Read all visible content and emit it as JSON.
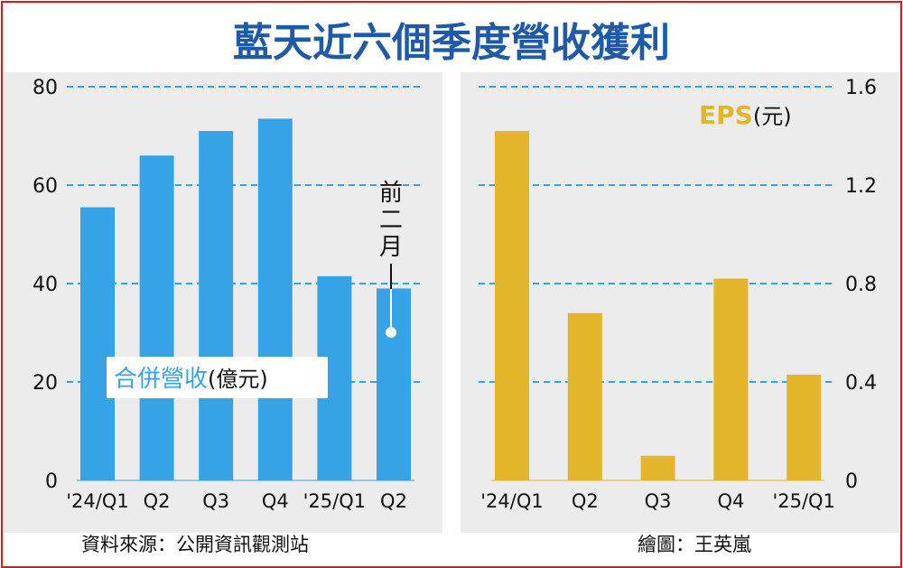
{
  "title": "藍天近六個季度營收獲利",
  "source": "資料來源：公開資訊觀測站",
  "credit": "繪圖：王英嵐",
  "colors": {
    "revenue": "#36a3e6",
    "eps": "#e2b52a",
    "title": "#1e5aa6",
    "grid": "#36a3e6",
    "border": "#e0141e"
  },
  "chart_data": [
    {
      "type": "bar",
      "legend_main": "合併營收",
      "legend_unit": "(億元)",
      "categories": [
        "'24/Q1",
        "Q2",
        "Q3",
        "Q4",
        "'25/Q1",
        "Q2"
      ],
      "values": [
        55.5,
        66,
        71,
        73.5,
        41.5,
        39
      ],
      "ylim": [
        0,
        80
      ],
      "yticks": [
        "0",
        "20",
        "40",
        "60",
        "80"
      ],
      "annotation": "前二月",
      "annotation_index": 5
    },
    {
      "type": "bar",
      "legend_main": "EPS",
      "legend_unit": "(元)",
      "categories": [
        "'24/Q1",
        "Q2",
        "Q3",
        "Q4",
        "'25/Q1"
      ],
      "values": [
        1.42,
        0.68,
        0.1,
        0.82,
        0.43
      ],
      "ylim": [
        0,
        1.6
      ],
      "yticks": [
        "0",
        "0.4",
        "0.8",
        "1.2",
        "1.6"
      ]
    }
  ]
}
